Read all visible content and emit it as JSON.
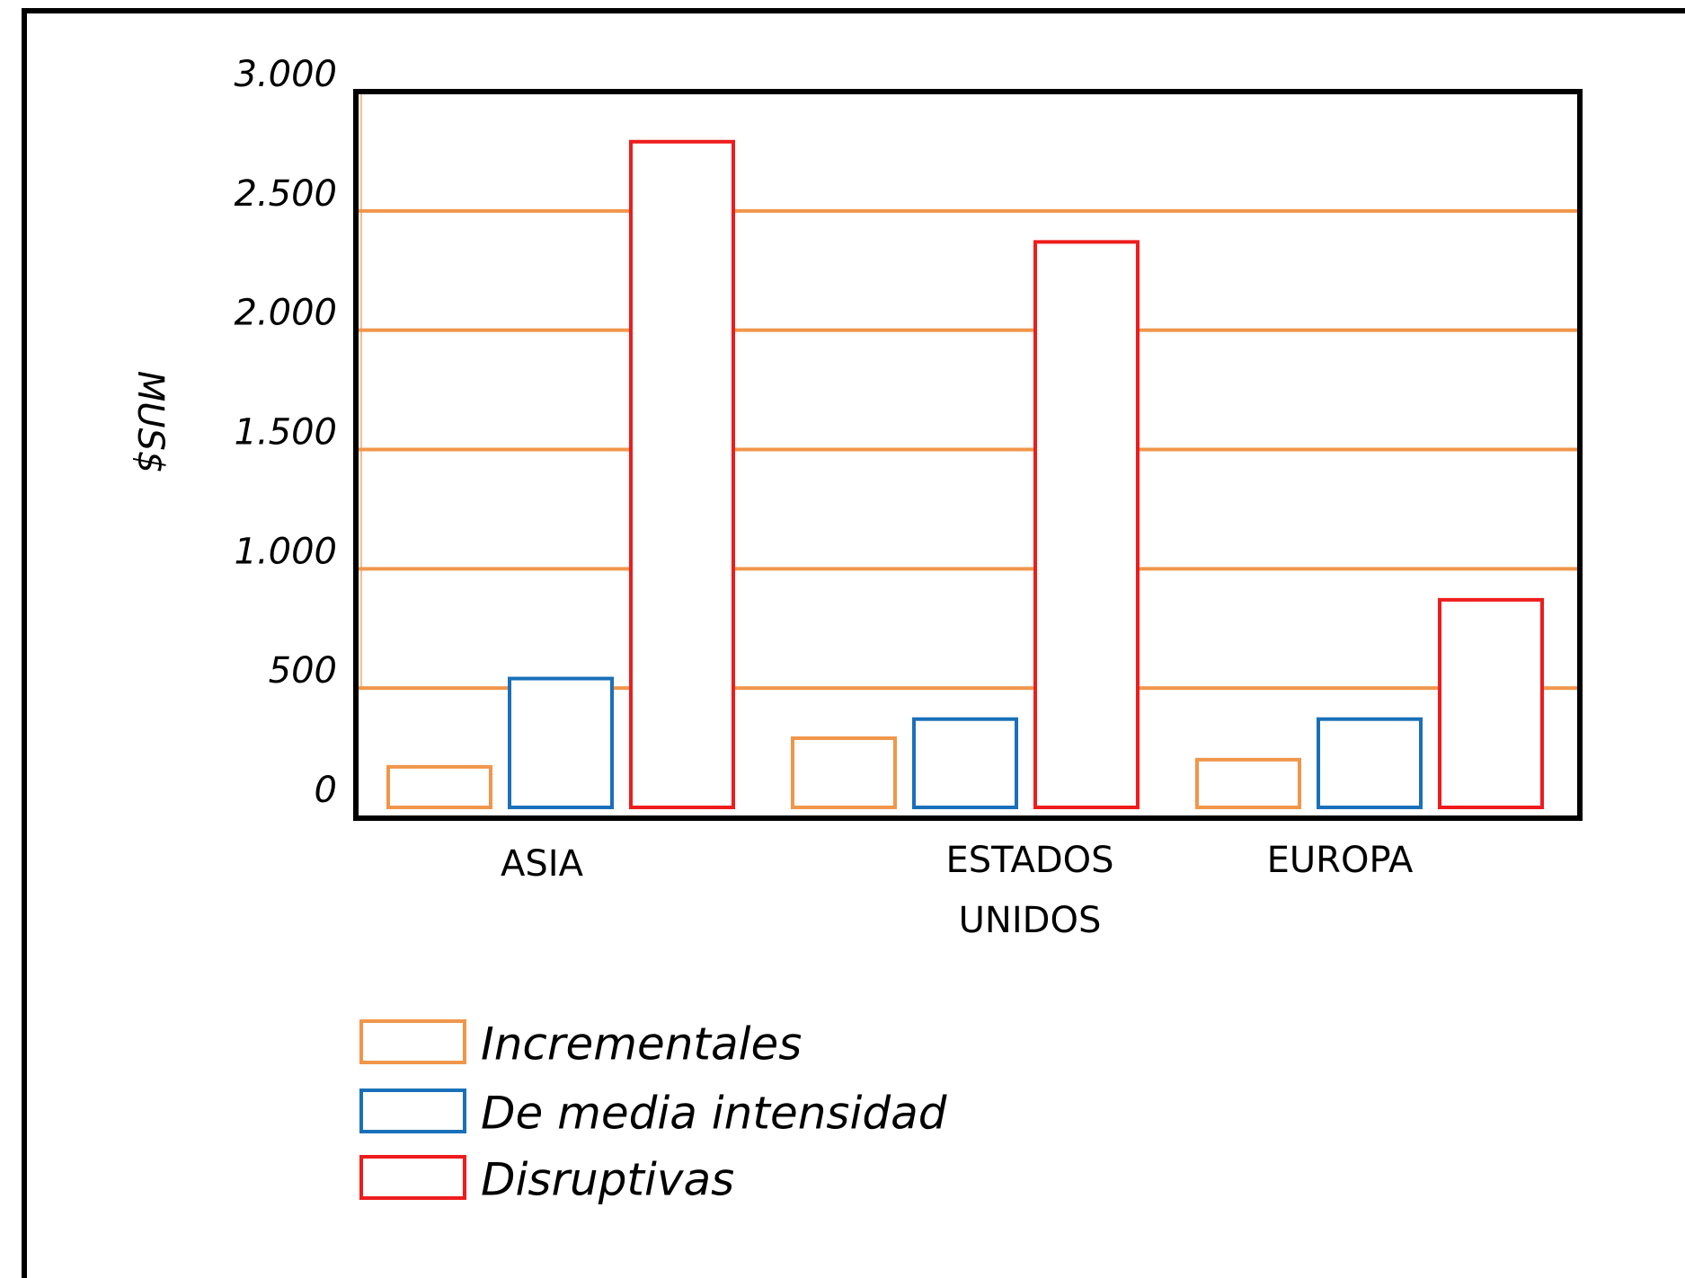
{
  "chart_data": {
    "type": "bar",
    "ylabel": "MUS$",
    "ylim": [
      0,
      3000
    ],
    "y_ticks": [
      0,
      500,
      1000,
      1500,
      2000,
      2500,
      3000
    ],
    "y_tick_labels": [
      "0",
      "500",
      "1.000",
      "1.500",
      "2.000",
      "2.500",
      "3.000"
    ],
    "categories": [
      {
        "lines": [
          "ASIA"
        ]
      },
      {
        "lines": [
          "ESTADOS",
          "UNIDOS"
        ]
      },
      {
        "lines": [
          "EUROPA"
        ]
      }
    ],
    "series": [
      {
        "name": "Incrementales",
        "color": "#f0964b",
        "values": [
          170,
          290,
          200
        ]
      },
      {
        "name": "De media intensidad",
        "color": "#1a70b8",
        "values": [
          540,
          370,
          370
        ]
      },
      {
        "name": "Disruptivas",
        "color": "#ee1c1c",
        "values": [
          2790,
          2370,
          870
        ]
      }
    ],
    "grid": true,
    "grid_color": "#f0964b",
    "legend_position": "bottom-left"
  }
}
